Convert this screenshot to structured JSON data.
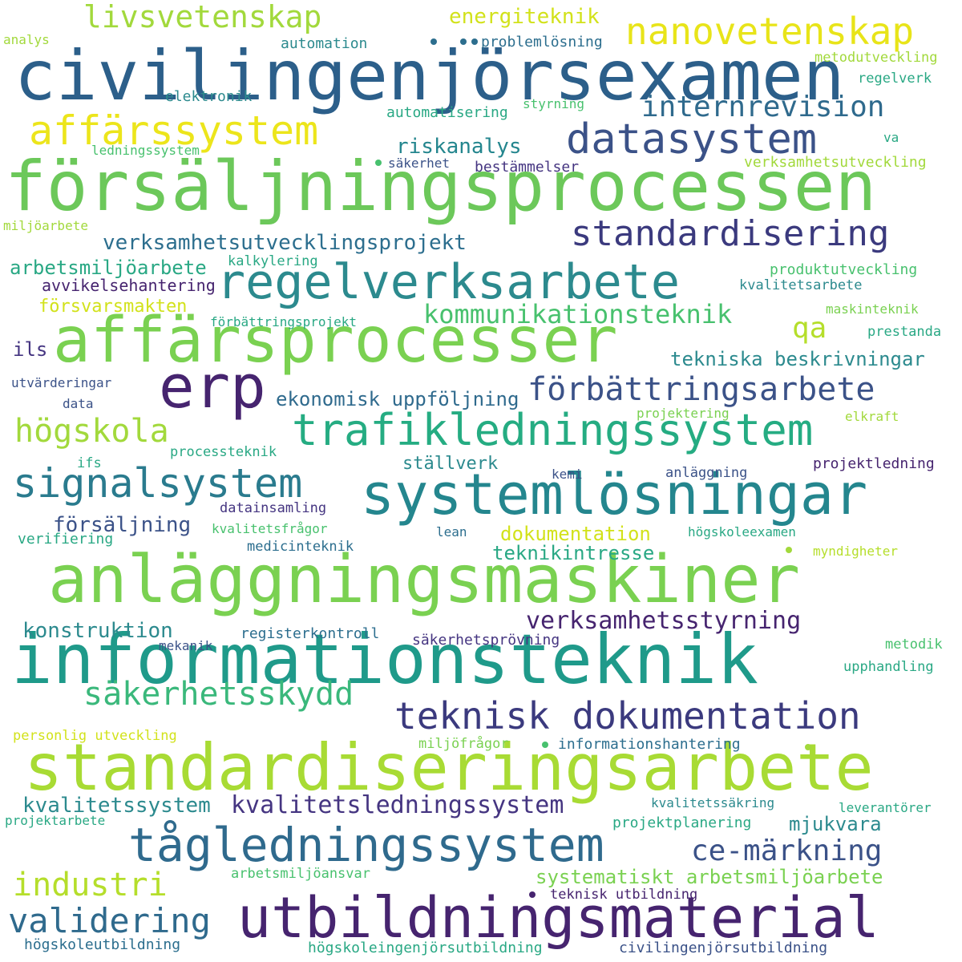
{
  "palette": {
    "navy": "#3b5288",
    "indigo": "#453581",
    "purple": "#46246f",
    "steel": "#2f6a8d",
    "blue": "#2c6e8e",
    "teal": "#218d8c",
    "green_teal": "#29a884",
    "green": "#48c16e",
    "lime": "#7ad151",
    "yellow_green": "#a2d93c",
    "yellow": "#d2e21b",
    "bright_yellow": "#ece51b"
  },
  "words": [
    "civilingenjörsexamen",
    "försäljningsprocessen",
    "affärsprocesser",
    "anläggningsmaskiner",
    "informationsteknik",
    "standardiseringsarbete",
    "systemlösningar",
    "regelverksarbete",
    "trafikledningssystem",
    "utbildningsmaterial",
    "tågledningssystem",
    "teknisk dokumentation",
    "datasystem",
    "affärssystem",
    "nanovetenskap",
    "livsvetenskap",
    "erp",
    "signalsystem",
    "standardisering",
    "förbättringsarbete",
    "internrevision",
    "säkerhetsskydd",
    "högskola",
    "validering",
    "industri",
    "ce-märkning",
    "verksamhetsstyrning",
    "kommunikationsteknik",
    "qa",
    "kvalitetsledningssystem",
    "energiteknik",
    "verksamhetsutvecklingsprojekt",
    "riskanalys",
    "ekonomisk uppföljning",
    "tekniska beskrivningar",
    "kvalitetssystem",
    "konstruktion",
    "försäljning",
    "systematiskt arbetsmiljöarbete",
    "teknikintresse",
    "mjukvara",
    "arbetsmiljöarbete",
    "ställverk",
    "dokumentation",
    "försvarsmakten",
    "avvikelsehantering",
    "ils",
    "problemlösning",
    "automation",
    "analys",
    "metodutveckling",
    "regelverk",
    "elektronik",
    "automatisering",
    "styrning",
    "ledningssystem",
    "säkerhet",
    "bestämmelser",
    "va",
    "verksamhetsutveckling",
    "miljöarbete",
    "kalkylering",
    "produktutveckling",
    "kvalitetsarbete",
    "förbättringsprojekt",
    "maskinteknik",
    "prestanda",
    "utvärderingar",
    "data",
    "projektering",
    "elkraft",
    "processteknik",
    "ifs",
    "kemi",
    "anläggning",
    "projektledning",
    "datainsamling",
    "kvalitetsfrågor",
    "lean",
    "högskoleexamen",
    "verifiering",
    "medicinteknik",
    "myndigheter",
    "registerkontroll",
    "säkerhetsprövning",
    "mekanik",
    "metodik",
    "upphandling",
    "personlig utveckling",
    "miljöfrågor",
    "informationshantering",
    "kvalitetssäkring",
    "leverantörer",
    "projektarbete",
    "projektplanering",
    "arbetsmiljöansvar",
    "teknisk utbildning",
    "högskoleutbildning",
    "högskoleingenjörsutbildning",
    "civilingenjörsutbildning"
  ]
}
